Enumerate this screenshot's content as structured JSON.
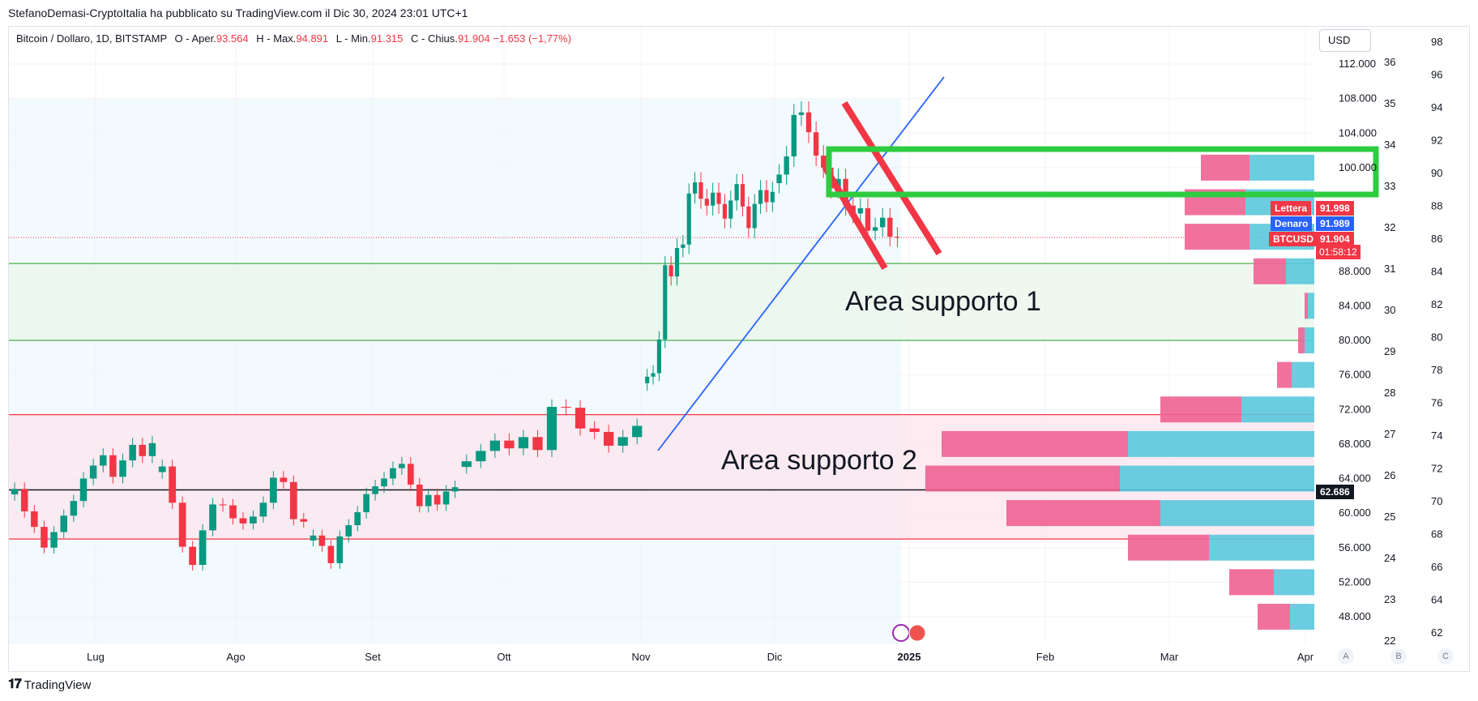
{
  "header": "StefanoDemasi-CryptoItalia ha pubblicato su TradingView.com il Dic 30, 2024 23:01 UTC+1",
  "legend": {
    "symbol": "Bitcoin / Dollaro, 1D, BITSTAMP",
    "open_label": "O - Aper.",
    "open": "93.564",
    "high_label": "H - Max.",
    "high": "94.891",
    "low_label": "L - Min.",
    "low": "91.315",
    "close_label": "C - Chius.",
    "close": "91.904",
    "change": "−1.653 (−1,77%)"
  },
  "currency": "USD",
  "footer_brand": "TradingView",
  "price_badges": {
    "ask_label": "Lettera",
    "ask": "91.998",
    "bid_label": "Denaro",
    "bid": "91.989",
    "last_label": "BTCUSD",
    "last": "91.904",
    "countdown": "01:58:12",
    "line_value": "62.686"
  },
  "abc_buttons": [
    "A",
    "B",
    "C"
  ],
  "annotations": {
    "zone1": "Area supporto 1",
    "zone2": "Area supporto 2"
  },
  "colors": {
    "up": "#089981",
    "down": "#f23645",
    "trendline": "#2962ff",
    "zone1_line": "#4caf50",
    "zone2_line": "#f23645",
    "box": "#2ecc40",
    "vp_up": "#5bc8db",
    "vp_down": "#f06292",
    "session_bg": "#e7f6fb"
  },
  "chart_data": {
    "type": "candlestick",
    "title": "Bitcoin / Dollaro, 1D, BITSTAMP",
    "x_ticks": [
      "Lug",
      "Ago",
      "Set",
      "Ott",
      "Nov",
      "Dic",
      "2025",
      "Feb",
      "Mar",
      "Apr"
    ],
    "y_ticks": [
      "112.000",
      "108.000",
      "104.000",
      "100.000",
      "88.000",
      "84.000",
      "80.000",
      "76.000",
      "72.000",
      "68.000",
      "64.000",
      "60.000",
      "56.000",
      "52.000",
      "48.000"
    ],
    "ylim": [
      44500,
      114000
    ],
    "secondary_axis_1": [
      "36",
      "35",
      "34",
      "33",
      "32",
      "31",
      "30",
      "29",
      "28",
      "27",
      "26",
      "25",
      "24",
      "23",
      "22"
    ],
    "secondary_axis_2": [
      "98",
      "96",
      "94",
      "92",
      "90",
      "88",
      "86",
      "84",
      "82",
      "80",
      "78",
      "76",
      "74",
      "72",
      "70",
      "68",
      "66",
      "64",
      "62"
    ],
    "closes": [
      {
        "month": "Lug",
        "values": [
          62800,
          60200,
          58400,
          56000,
          57800,
          59700,
          61400,
          64000,
          65500,
          66700,
          64200,
          66100,
          67900,
          66600,
          68100
        ]
      },
      {
        "month": "Ago",
        "values": [
          65400,
          61200,
          56100,
          54000,
          58000,
          61000,
          60900,
          59400,
          58800,
          59600,
          61200,
          64100,
          63600,
          59300,
          59000
        ]
      },
      {
        "month": "Set",
        "values": [
          57400,
          56200,
          54200,
          57300,
          58600,
          60100,
          62200,
          63100,
          64000,
          65200,
          65700,
          63300,
          60800,
          62100,
          61000,
          62500,
          63000
        ]
      },
      {
        "month": "Ott",
        "values": [
          66000,
          67200,
          68400,
          67500,
          68800,
          67300,
          72300,
          72200,
          69800,
          69400,
          67800,
          68800,
          70100
        ]
      },
      {
        "month": "Nov",
        "values": [
          75800,
          76200,
          80100,
          88700,
          87400,
          90700,
          91100,
          97000,
          98300,
          96400,
          95600,
          97100,
          95800,
          94100,
          96200,
          98100,
          95500,
          93000,
          95800,
          97400,
          96000,
          97200
        ]
      },
      {
        "month": "Dic",
        "values": [
          99200,
          101300,
          106100,
          106400,
          104100,
          101400,
          100000,
          97600,
          98700,
          95600,
          94700,
          95300,
          92700,
          93100,
          94200,
          92000,
          91900
        ]
      }
    ],
    "lines": {
      "zone1": [
        88900,
        80000
      ],
      "zone2": [
        71400,
        57000
      ],
      "horizontal": 62686
    },
    "volume_profile": [
      {
        "price": 48000,
        "up": 30,
        "down": 40
      },
      {
        "price": 52000,
        "up": 50,
        "down": 55
      },
      {
        "price": 56000,
        "up": 130,
        "down": 100
      },
      {
        "price": 60000,
        "up": 190,
        "down": 190
      },
      {
        "price": 64000,
        "up": 240,
        "down": 240
      },
      {
        "price": 68000,
        "up": 230,
        "down": 230
      },
      {
        "price": 72000,
        "up": 90,
        "down": 100
      },
      {
        "price": 76000,
        "up": 28,
        "down": 18
      },
      {
        "price": 80000,
        "up": 12,
        "down": 8
      },
      {
        "price": 84000,
        "up": 8,
        "down": 4
      },
      {
        "price": 88000,
        "up": 35,
        "down": 40
      },
      {
        "price": 92000,
        "up": 80,
        "down": 80
      },
      {
        "price": 96000,
        "up": 85,
        "down": 75
      },
      {
        "price": 100000,
        "up": 80,
        "down": 60
      }
    ]
  }
}
